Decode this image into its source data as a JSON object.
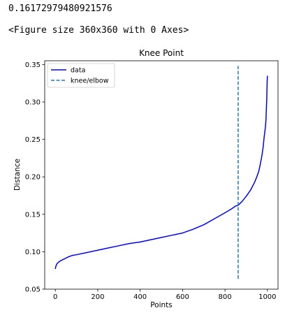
{
  "output": {
    "value_text": "0.16172979480921576",
    "figure_text": "<Figure size 360x360 with 0 Axes>"
  },
  "chart_data": {
    "type": "line",
    "title": "Knee Point",
    "xlabel": "Points",
    "ylabel": "Distance",
    "xlim": [
      -50,
      1050
    ],
    "ylim": [
      0.05,
      0.355
    ],
    "x_ticks": [
      0,
      200,
      400,
      600,
      800,
      1000
    ],
    "y_ticks": [
      0.05,
      0.1,
      0.15,
      0.2,
      0.25,
      0.3,
      0.35
    ],
    "x_tick_labels": [
      "0",
      "200",
      "400",
      "600",
      "800",
      "1000"
    ],
    "y_tick_labels": [
      "0.05",
      "0.10",
      "0.15",
      "0.20",
      "0.25",
      "0.30",
      "0.35"
    ],
    "grid": false,
    "legend_position": "upper-left",
    "series": [
      {
        "name": "data",
        "style": "solid",
        "color": "#0000ff",
        "x": [
          0,
          3,
          8,
          15,
          25,
          40,
          60,
          80,
          100,
          150,
          200,
          250,
          300,
          350,
          400,
          450,
          500,
          550,
          600,
          650,
          700,
          750,
          800,
          830,
          850,
          862,
          880,
          900,
          920,
          940,
          950,
          960,
          970,
          975,
          980,
          985,
          990,
          993,
          995,
          997,
          998,
          999,
          1000
        ],
        "y": [
          0.077,
          0.081,
          0.084,
          0.086,
          0.088,
          0.09,
          0.093,
          0.095,
          0.096,
          0.099,
          0.102,
          0.105,
          0.108,
          0.111,
          0.113,
          0.116,
          0.119,
          0.122,
          0.125,
          0.13,
          0.136,
          0.144,
          0.152,
          0.157,
          0.161,
          0.162,
          0.167,
          0.174,
          0.182,
          0.193,
          0.2,
          0.208,
          0.222,
          0.23,
          0.24,
          0.254,
          0.265,
          0.275,
          0.29,
          0.305,
          0.318,
          0.328,
          0.335
        ]
      },
      {
        "name": "knee/elbow",
        "style": "dashed",
        "color": "#1f77b4",
        "x": [
          862,
          862
        ],
        "y": [
          0.064,
          0.348
        ]
      }
    ]
  }
}
